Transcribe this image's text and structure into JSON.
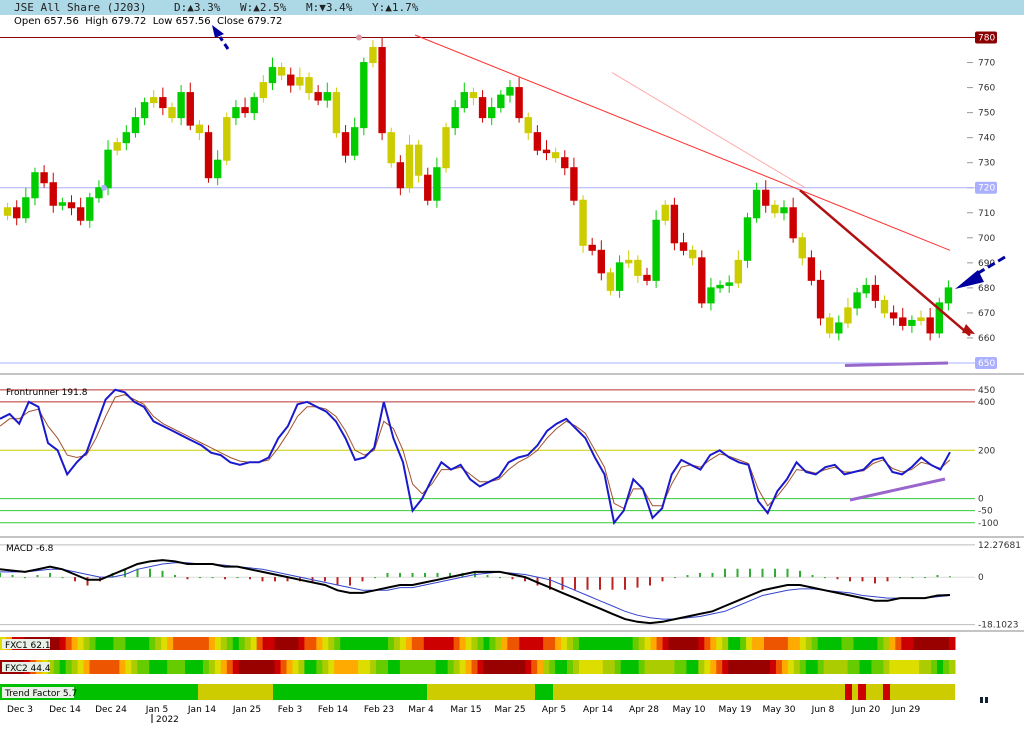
{
  "header": {
    "title": "JSE All Share (J203)",
    "daily": "D:▲3.3%",
    "weekly": "W:▲2.5%",
    "monthly": "M:▼3.4%",
    "yearly": "Y:▲1.7%",
    "ohlc": "Open 657.56  High 679.72  Low 657.56  Close 679.72"
  },
  "chart_data": [
    {
      "type": "candlestick",
      "title": "JSE All Share (J203)",
      "yaxis_ticks": [
        650,
        660,
        670,
        680,
        690,
        700,
        710,
        720,
        730,
        740,
        750,
        760,
        770,
        780
      ],
      "highlighted_levels": [
        {
          "value": 780,
          "color": "#8b0000"
        },
        {
          "value": 720,
          "color": "#aab0ff"
        },
        {
          "value": 650,
          "color": "#aab0ff"
        }
      ],
      "close_series": [
        712,
        708,
        716,
        726,
        722,
        713,
        714,
        712,
        707,
        716,
        720,
        735,
        738,
        742,
        748,
        754,
        756,
        752,
        748,
        758,
        745,
        742,
        724,
        731,
        748,
        752,
        750,
        756,
        762,
        768,
        765,
        761,
        764,
        758,
        755,
        758,
        742,
        733,
        744,
        770,
        776,
        742,
        730,
        720,
        737,
        725,
        715,
        728,
        744,
        752,
        758,
        756,
        748,
        752,
        757,
        760,
        748,
        742,
        735,
        734,
        732,
        728,
        715,
        697,
        695,
        686,
        679,
        690,
        691,
        685,
        683,
        707,
        713,
        698,
        695,
        692,
        674,
        680,
        681,
        682,
        691,
        708,
        719,
        713,
        710,
        712,
        700,
        692,
        683,
        668,
        662,
        666,
        672,
        678,
        681,
        675,
        670,
        668,
        665,
        667,
        668,
        662,
        674,
        680
      ],
      "ylim": [
        648,
        783
      ]
    },
    {
      "type": "line",
      "title": "Frontrunner 191.8",
      "yaxis_ticks": [
        450,
        400,
        200,
        0,
        -50,
        -100
      ],
      "series": [
        {
          "name": "Frontrunner",
          "values": [
            330,
            350,
            310,
            400,
            380,
            230,
            200,
            100,
            150,
            190,
            300,
            410,
            450,
            440,
            400,
            380,
            320,
            300,
            280,
            260,
            240,
            220,
            190,
            180,
            150,
            140,
            150,
            150,
            170,
            250,
            300,
            390,
            400,
            380,
            360,
            320,
            250,
            160,
            170,
            210,
            400,
            250,
            150,
            -50,
            0,
            80,
            150,
            120,
            140,
            80,
            50,
            70,
            90,
            150,
            170,
            180,
            220,
            280,
            310,
            330,
            290,
            250,
            170,
            100,
            -100,
            -50,
            80,
            40,
            -80,
            -40,
            100,
            160,
            140,
            120,
            180,
            200,
            170,
            150,
            140,
            -10,
            -60,
            30,
            80,
            150,
            110,
            100,
            130,
            140,
            100,
            110,
            120,
            160,
            170,
            110,
            100,
            130,
            170,
            140,
            120,
            191.8
          ]
        },
        {
          "name": "signal",
          "values": [
            300,
            330,
            330,
            360,
            370,
            300,
            250,
            180,
            170,
            180,
            250,
            340,
            420,
            430,
            410,
            390,
            340,
            310,
            290,
            270,
            250,
            230,
            210,
            190,
            170,
            155,
            150,
            150,
            160,
            210,
            270,
            340,
            380,
            380,
            370,
            340,
            280,
            200,
            180,
            200,
            320,
            290,
            200,
            60,
            20,
            60,
            120,
            120,
            130,
            100,
            70,
            70,
            80,
            120,
            150,
            170,
            200,
            250,
            290,
            320,
            300,
            270,
            200,
            130,
            -20,
            -40,
            40,
            40,
            -30,
            -30,
            60,
            130,
            140,
            130,
            160,
            185,
            175,
            160,
            145,
            40,
            -30,
            10,
            60,
            120,
            115,
            105,
            120,
            130,
            110,
            110,
            115,
            145,
            160,
            125,
            110,
            120,
            150,
            140,
            125,
            160
          ]
        }
      ],
      "ylim": [
        -130,
        470
      ]
    },
    {
      "type": "line",
      "title": "MACD -6.8",
      "yaxis_ticks": [
        12.27681,
        0,
        -18.1023
      ],
      "series": [
        {
          "name": "MACD",
          "values": [
            3,
            2.5,
            2,
            3,
            4,
            3,
            1,
            -1,
            -1,
            1,
            3,
            5,
            6,
            6.5,
            6,
            5,
            5,
            5,
            4,
            4,
            3,
            2,
            1,
            0,
            -1,
            -2,
            -3,
            -5,
            -6,
            -6,
            -5,
            -4,
            -3,
            -3,
            -2,
            -1,
            0,
            1,
            2,
            2,
            2,
            1,
            0,
            -2,
            -4,
            -6,
            -8,
            -10,
            -12,
            -14,
            -16,
            -17,
            -17.5,
            -17,
            -16,
            -15,
            -14,
            -13,
            -11,
            -9,
            -7,
            -5,
            -4,
            -3,
            -3,
            -4,
            -5,
            -6,
            -7,
            -8,
            -9,
            -9,
            -8,
            -8,
            -8,
            -7,
            -6.8
          ]
        },
        {
          "name": "signal",
          "values": [
            2,
            2,
            2,
            2.5,
            3,
            3,
            2,
            1,
            0,
            0,
            1,
            3,
            4,
            5,
            5.5,
            5.5,
            5,
            5,
            4.5,
            4,
            3.5,
            3,
            2,
            1,
            0,
            -1,
            -2,
            -3,
            -4,
            -5,
            -5,
            -5,
            -4,
            -4,
            -3,
            -2,
            -1,
            0,
            1,
            1.5,
            2,
            1.5,
            1,
            0,
            -1,
            -3,
            -5,
            -7,
            -9,
            -11,
            -13,
            -14.5,
            -15.5,
            -16,
            -16,
            -15.5,
            -15,
            -14,
            -13,
            -11,
            -9,
            -7,
            -6,
            -5,
            -4.5,
            -4.5,
            -5,
            -5.5,
            -6,
            -7,
            -7.5,
            -8,
            -8,
            -8,
            -8,
            -7.5,
            -7
          ]
        }
      ],
      "ylim": [
        -19,
        13
      ]
    }
  ],
  "fxc1": {
    "label": "FXC1 62.1"
  },
  "fxc2": {
    "label": "FXC2 44.4"
  },
  "trend": {
    "label": "Trend Factor 5.7"
  },
  "xaxis": {
    "ticks": [
      "Dec 3",
      "Dec 14",
      "Dec 24",
      "Jan 5",
      "Jan 14",
      "Jan 25",
      "Feb 3",
      "Feb 14",
      "Feb 23",
      "Mar 4",
      "Mar 15",
      "Mar 25",
      "Apr 5",
      "Apr 14",
      "Apr 28",
      "May 10",
      "May 19",
      "May 30",
      "Jun 8",
      "Jun 20",
      "Jun 29"
    ],
    "year": "2022"
  }
}
